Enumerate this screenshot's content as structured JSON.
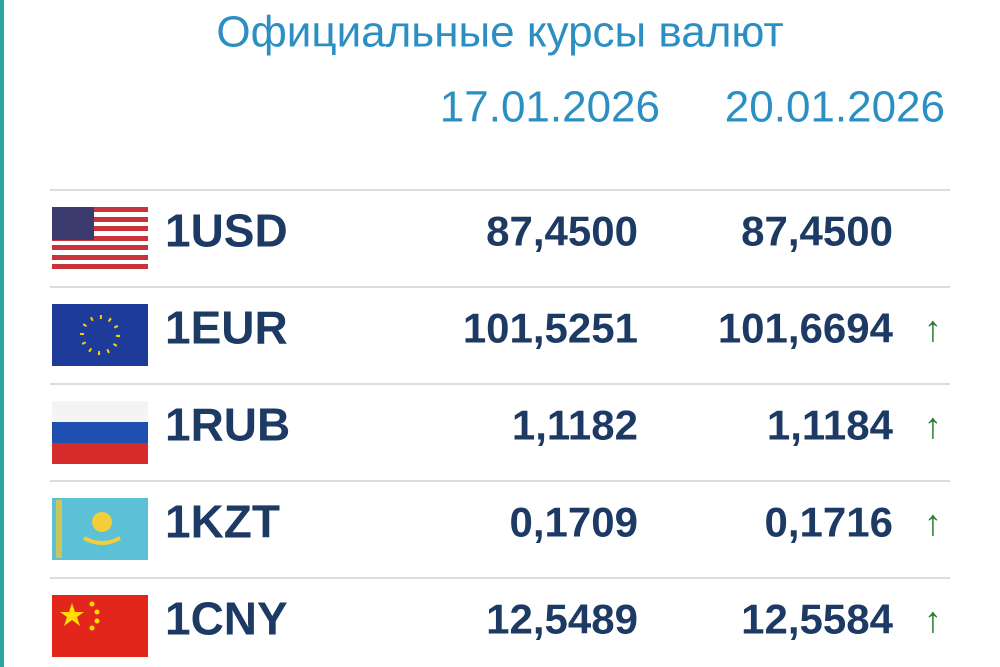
{
  "header": {
    "title": "Официальные курсы валют"
  },
  "table": {
    "columns": [
      "17.01.2026",
      "20.01.2026"
    ],
    "rows": [
      {
        "currency": "1USD",
        "values": [
          "87,4500",
          "87,4500"
        ]
      },
      {
        "currency": "1EUR",
        "values": [
          "101,5251",
          "101,6694"
        ],
        "arrow": "↑"
      },
      {
        "currency": "1RUB",
        "values": [
          "1,1182",
          "1,1184"
        ],
        "arrow": "↑"
      },
      {
        "currency": "1KZT",
        "values": [
          "0,1709",
          "0,1716"
        ],
        "arrow": "↑"
      },
      {
        "currency": "1CNY",
        "values": [
          "12,5489",
          "12,5584"
        ],
        "arrow": "↑"
      }
    ]
  }
}
